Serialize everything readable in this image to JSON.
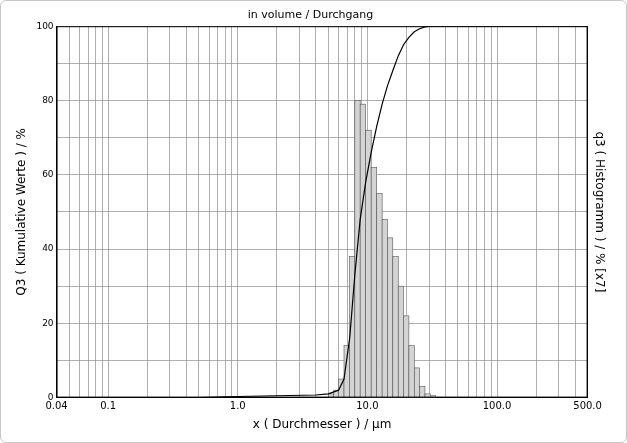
{
  "chart_data": {
    "type": "histogram",
    "title": "in volume / Durchgang",
    "x_label": "x ( Durchmesser ) / µm",
    "y_label": "Q3 ( Kumulative Werte ) / %",
    "y2_label": "q3 ( Histogramm ) / % [x7]",
    "log": "x",
    "grid": true,
    "xlim": [
      0.04,
      500
    ],
    "xticks": [
      0.04,
      0.1,
      {
        "value": 1,
        "label": "1.0"
      },
      {
        "value": 10,
        "label": "10.0"
      },
      {
        "value": 100,
        "label": "100.0"
      },
      {
        "value": 500,
        "label": "500.0"
      }
    ],
    "ylim": [
      0,
      100
    ],
    "yticks": [
      0,
      20,
      40,
      60,
      80,
      100
    ],
    "y2lim": [
      0,
      100
    ],
    "series": [
      {
        "type": "bar",
        "axis": "y2",
        "color": "#d4d4d4",
        "bins": [
          5.0,
          5.5,
          6.0,
          6.6,
          7.3,
          8.0,
          8.8,
          9.7,
          10.7,
          11.8,
          13.0,
          14.3,
          15.7,
          17.3,
          19.0,
          20.9,
          23.0,
          25.3,
          27.8,
          30.6,
          33.7
        ],
        "values": [
          1,
          2,
          5,
          14,
          38,
          80,
          79,
          72,
          62,
          55,
          48,
          43,
          38,
          30,
          22,
          14,
          8,
          3,
          1,
          0.5
        ]
      },
      {
        "type": "line",
        "color": "#000000",
        "x": [
          0.04,
          0.5,
          0.8,
          1.0,
          2.0,
          4.0,
          5.0,
          6.0,
          6.6,
          7.3,
          8.0,
          8.8,
          9.7,
          10.7,
          11.8,
          13.0,
          14.3,
          15.7,
          17.3,
          19.0,
          20.9,
          23.0,
          25.3,
          27.8,
          30.6,
          500
        ],
        "values": [
          0,
          0,
          0.2,
          0.3,
          0.5,
          0.7,
          1,
          2,
          5,
          16,
          33,
          48,
          58,
          66,
          73,
          79,
          84,
          88,
          92,
          95,
          97,
          98.5,
          99.3,
          99.8,
          100,
          100
        ]
      }
    ]
  }
}
